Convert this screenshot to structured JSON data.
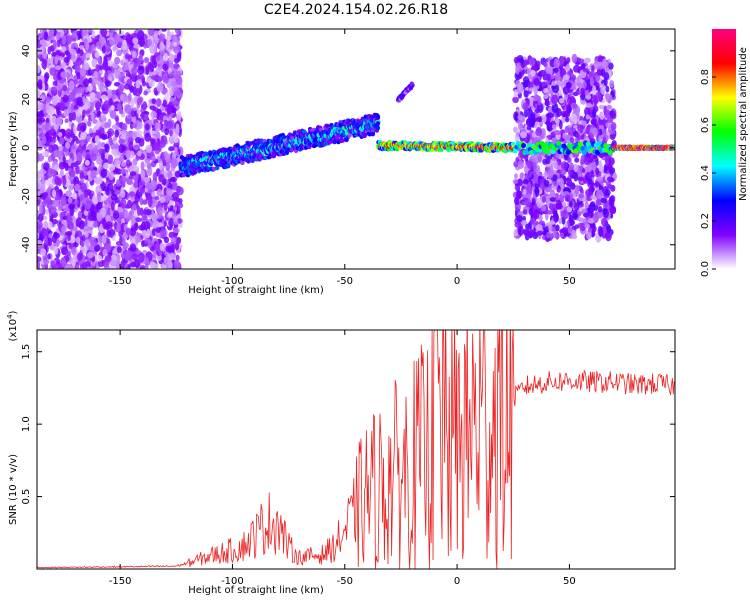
{
  "figure": {
    "title": "C2E4.2024.154.02.26.R18"
  },
  "chart_data": [
    {
      "type": "heatmap",
      "title": "",
      "xlabel": "Height of straight line (km)",
      "ylabel": "Frequency (Hz)",
      "xlim": [
        -187,
        97
      ],
      "ylim": [
        -50,
        49
      ],
      "xticks": [
        -150,
        -100,
        -50,
        0,
        50
      ],
      "xtick_labels": [
        "-150",
        "-100",
        "-50",
        "0",
        "50"
      ],
      "yticks": [
        -40,
        -20,
        0,
        20,
        40
      ],
      "ytick_labels": [
        "-40",
        "-20",
        "0",
        "20",
        "40"
      ],
      "colorbar": {
        "label": "Normalized spectral amplitude",
        "range": [
          0,
          1
        ],
        "ticks": [
          0.0,
          0.2,
          0.4,
          0.6,
          0.8
        ],
        "tick_labels": [
          "0.0",
          "0.2",
          "0.4",
          "0.6",
          "0.8"
        ],
        "colors": [
          "#ffffff",
          "#8000ff",
          "#0000ff",
          "#00ffff",
          "#00ff00",
          "#ffff00",
          "#ff0000",
          "#ff0080"
        ]
      },
      "segments": [
        {
          "x_range": [
            -187,
            -123
          ],
          "freq_range": [
            -50,
            49
          ],
          "amplitude": 0.1,
          "pattern": "broadband noise"
        },
        {
          "x_range": [
            -123,
            -35
          ],
          "freq_center": [
            -8,
            10
          ],
          "freq_spread": 8,
          "amplitude": 0.35,
          "pattern": "rising line"
        },
        {
          "x_range": [
            -35,
            26
          ],
          "freq_center": [
            1,
            0
          ],
          "freq_spread": 3,
          "amplitude": 0.7,
          "pattern": "narrow line"
        },
        {
          "x_range": [
            26,
            70
          ],
          "freq_range": [
            -37,
            37
          ],
          "amplitude": 0.12,
          "pattern": "broadband noise",
          "line_amplitude": 0.45
        },
        {
          "x_range": [
            70,
            97
          ],
          "freq_center": [
            0,
            0
          ],
          "freq_spread": 1,
          "amplitude": 0.9,
          "pattern": "narrow line"
        },
        {
          "x_range": [
            -26,
            -20
          ],
          "freq_center": [
            20,
            26
          ],
          "freq_spread": 2,
          "amplitude": 0.2,
          "pattern": "faint branch"
        }
      ]
    },
    {
      "type": "line",
      "title": "",
      "xlabel": "Height of straight line (km)",
      "ylabel": "SNR (10 * v/v)",
      "scale_label_base": "(x10",
      "scale_label_exp": "4",
      "scale_label_end": ")",
      "xlim": [
        -187,
        97
      ],
      "ylim": [
        0,
        16500
      ],
      "xticks": [
        -150,
        -100,
        -50,
        0,
        50
      ],
      "xtick_labels": [
        "-150",
        "-100",
        "-50",
        "0",
        "50"
      ],
      "yticks": [
        5000,
        10000,
        15000
      ],
      "ytick_labels": [
        "0.5",
        "1.0",
        "1.5"
      ],
      "line_color": "#ee2222",
      "series": [
        {
          "x": [
            -187,
            -150,
            -125,
            -120,
            -110,
            -100,
            -95,
            -90,
            -85,
            -80,
            -75,
            -70,
            -65,
            -60,
            -55,
            -50,
            -45,
            -40,
            -35,
            -30,
            -25,
            -20,
            -15,
            -10,
            -8,
            -5,
            0,
            5,
            10,
            15,
            20,
            25,
            30,
            40,
            50,
            60,
            70,
            80,
            90,
            97
          ],
          "y": [
            100,
            150,
            200,
            400,
            900,
            1300,
            1600,
            2300,
            3200,
            3300,
            1500,
            800,
            900,
            1000,
            1500,
            2600,
            4000,
            5200,
            5600,
            6200,
            6600,
            7100,
            7700,
            8400,
            10500,
            9200,
            8800,
            9600,
            10400,
            10200,
            10600,
            11700,
            12600,
            12900,
            13000,
            12900,
            12900,
            12700,
            12800,
            12600
          ]
        }
      ]
    }
  ]
}
